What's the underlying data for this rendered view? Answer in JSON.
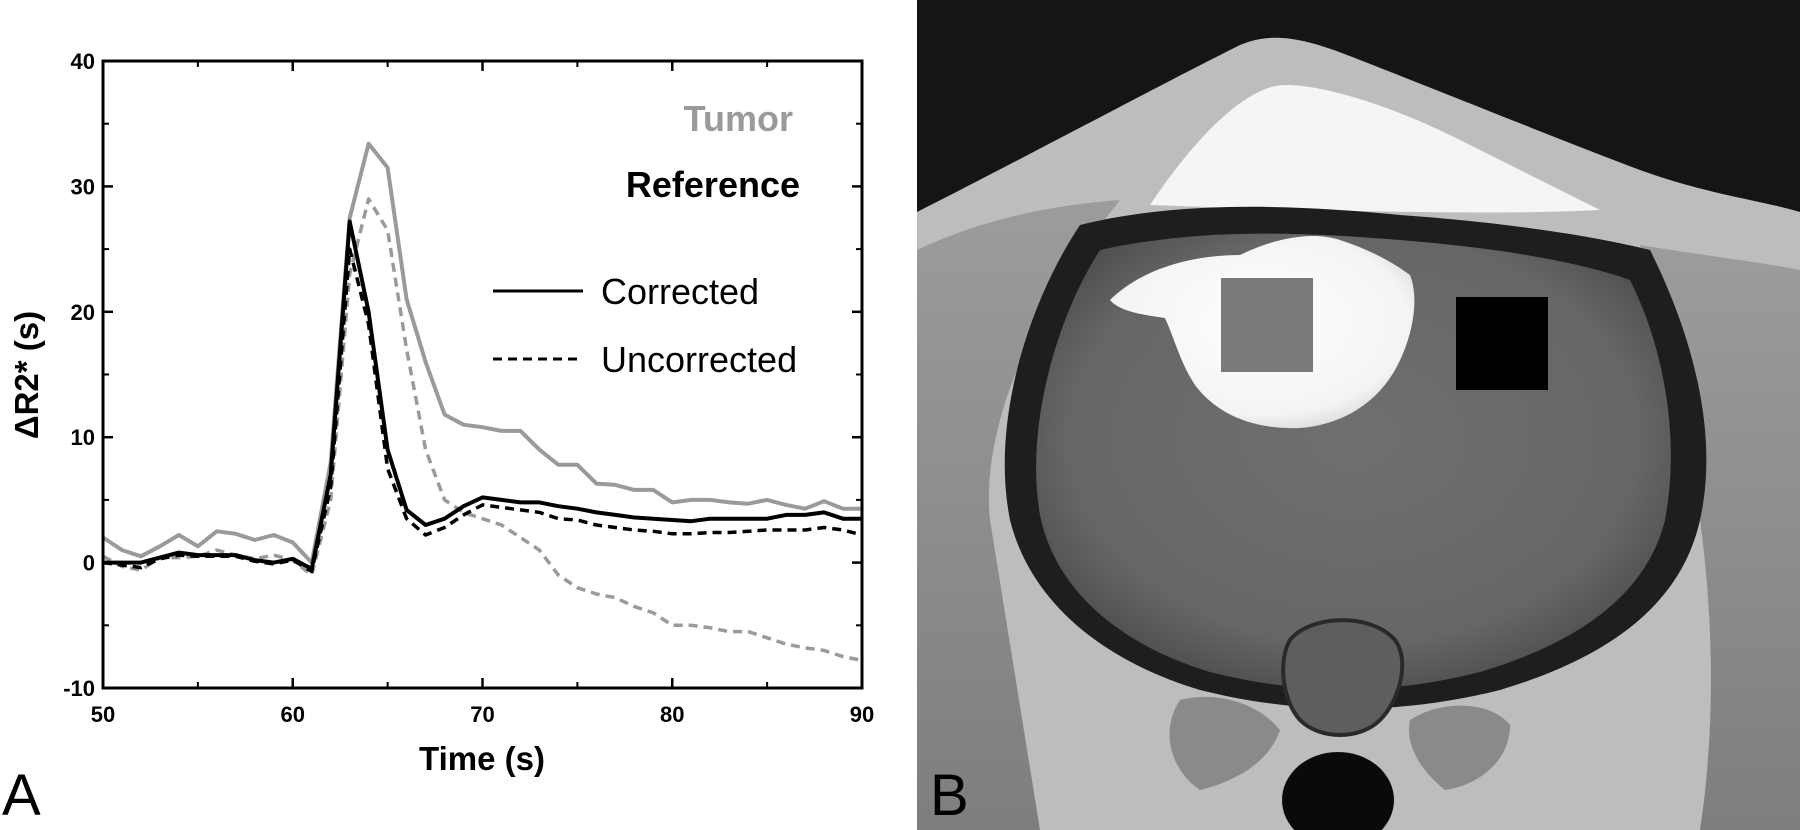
{
  "panels": {
    "left_label": "A",
    "right_label": "B"
  },
  "colors": {
    "tumor": "#9a9a9a",
    "reference": "#000000"
  },
  "mri": {
    "roi_tumor_color": "#7a7a7a",
    "roi_reference_color": "#000000"
  },
  "chart_data": {
    "type": "line",
    "xlabel": "Time (s)",
    "ylabel": "ΔR2* (s)",
    "xlim": [
      50,
      90
    ],
    "ylim": [
      -10,
      40
    ],
    "xticks": [
      50,
      60,
      70,
      80,
      90
    ],
    "yticks": [
      -10,
      0,
      10,
      20,
      30,
      40
    ],
    "grid": false,
    "legend": {
      "position": "top-right",
      "groups": [
        "Tumor",
        "Reference"
      ],
      "styles": [
        "Corrected",
        "Uncorrected"
      ]
    },
    "x": [
      50,
      51,
      52,
      53,
      54,
      55,
      56,
      57,
      58,
      59,
      60,
      61,
      62,
      63,
      64,
      65,
      66,
      67,
      68,
      69,
      70,
      71,
      72,
      73,
      74,
      75,
      76,
      77,
      78,
      79,
      80,
      81,
      82,
      83,
      84,
      85,
      86,
      87,
      88,
      89,
      90
    ],
    "series": [
      {
        "name": "Tumor Corrected",
        "group": "Tumor",
        "style": "Corrected",
        "values": [
          2.0,
          1.0,
          0.5,
          1.3,
          2.2,
          1.3,
          2.5,
          2.3,
          1.8,
          2.2,
          1.6,
          0.0,
          8.0,
          27.5,
          33.4,
          31.5,
          21.0,
          16.0,
          11.8,
          11.0,
          10.8,
          10.5,
          10.5,
          9.0,
          7.8,
          7.8,
          6.3,
          6.2,
          5.8,
          5.8,
          4.8,
          5.0,
          5.0,
          4.8,
          4.7,
          5.0,
          4.6,
          4.3,
          4.9,
          4.3,
          4.3
        ]
      },
      {
        "name": "Tumor Uncorrected",
        "group": "Tumor",
        "style": "Uncorrected",
        "values": [
          0.5,
          -0.3,
          -0.6,
          0.4,
          0.4,
          0.5,
          1.0,
          0.6,
          0.3,
          0.6,
          0.2,
          -1.0,
          5.0,
          23.0,
          29.0,
          26.5,
          17.0,
          9.0,
          5.0,
          4.0,
          3.5,
          3.0,
          2.0,
          1.0,
          -1.0,
          -2.0,
          -2.5,
          -2.8,
          -3.5,
          -4.0,
          -5.0,
          -5.0,
          -5.2,
          -5.5,
          -5.5,
          -6.0,
          -6.5,
          -6.8,
          -7.0,
          -7.5,
          -7.8
        ]
      },
      {
        "name": "Reference Corrected",
        "group": "Reference",
        "style": "Corrected",
        "values": [
          0.0,
          0.0,
          0.0,
          0.4,
          0.8,
          0.6,
          0.6,
          0.6,
          0.2,
          0.0,
          0.3,
          -0.5,
          7.0,
          27.2,
          20.0,
          9.0,
          4.2,
          3.0,
          3.5,
          4.5,
          5.2,
          5.0,
          4.8,
          4.8,
          4.5,
          4.3,
          4.0,
          3.8,
          3.6,
          3.5,
          3.4,
          3.3,
          3.5,
          3.5,
          3.5,
          3.5,
          3.8,
          3.8,
          4.0,
          3.5,
          3.5
        ]
      },
      {
        "name": "Reference Uncorrected",
        "group": "Reference",
        "style": "Uncorrected",
        "values": [
          0.0,
          -0.2,
          -0.4,
          0.3,
          0.6,
          0.5,
          0.5,
          0.5,
          0.1,
          -0.1,
          0.2,
          -0.7,
          6.0,
          25.0,
          19.0,
          7.5,
          3.5,
          2.2,
          2.8,
          3.8,
          4.6,
          4.4,
          4.2,
          4.0,
          3.5,
          3.4,
          3.0,
          2.8,
          2.6,
          2.5,
          2.3,
          2.3,
          2.4,
          2.4,
          2.5,
          2.6,
          2.6,
          2.6,
          2.8,
          2.6,
          2.2
        ]
      }
    ]
  }
}
